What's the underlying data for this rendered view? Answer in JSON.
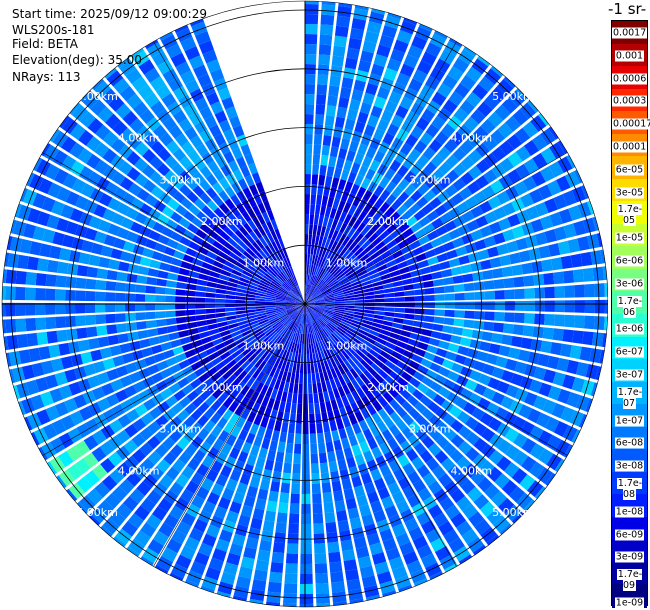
{
  "info": {
    "start_time": "Start time: 2025/09/12 09:00:29",
    "instrument": "WLS200s-181",
    "field": "Field: BETA",
    "elevation": "Elevation(deg): 35.00",
    "nrays": "NRays: 113"
  },
  "colorbar": {
    "title": "-1 sr-",
    "ticks": [
      "0.0017",
      "0.001",
      "0.0006",
      "0.0003",
      "0.00017",
      "0.0001",
      "6e-05",
      "3e-05",
      "1.7e-05",
      "1e-05",
      "6e-06",
      "3e-06",
      "1.7e-06",
      "1e-06",
      "6e-07",
      "3e-07",
      "1.7e-07",
      "1e-07",
      "6e-08",
      "3e-08",
      "1.7e-08",
      "1e-08",
      "6e-09",
      "3e-09",
      "1.7e-09",
      "1e-09"
    ],
    "colors": [
      "#800000",
      "#b40000",
      "#e60000",
      "#ff2800",
      "#ff5a00",
      "#ff8c00",
      "#ffb400",
      "#ffdc00",
      "#f0ff00",
      "#c8ff32",
      "#a0ff5a",
      "#78ff82",
      "#50ffaa",
      "#28ffd2",
      "#00f0ff",
      "#00d2ff",
      "#00b4ff",
      "#0096ff",
      "#0078ff",
      "#005aff",
      "#003cff",
      "#001eff",
      "#0000e6",
      "#0000c8",
      "#0000a0",
      "#000080"
    ]
  },
  "chart_data": {
    "type": "heatmap",
    "projection": "polar-ppi",
    "field": "BETA",
    "elevation_deg": 35.0,
    "n_rays": 113,
    "range_ring_labels": [
      "1.00km",
      "2.00km",
      "3.00km",
      "4.00km",
      "5.00km"
    ],
    "range_rings_km": [
      1,
      2,
      3,
      4,
      5
    ],
    "max_range_km": 5.1,
    "missing_sector_azimuth_deg": [
      340,
      360
    ],
    "enhanced_regions": [
      {
        "azimuth_deg": [
          228,
          240
        ],
        "range_km": [
          4.4,
          5.1
        ],
        "level": "1.7e-06"
      },
      {
        "azimuth_deg": [
          318,
          332
        ],
        "range_km": [
          2.6,
          4.6
        ],
        "level": "1.7e-07"
      }
    ],
    "typical_value": "6e-08",
    "near_range_value": "3e-09"
  }
}
